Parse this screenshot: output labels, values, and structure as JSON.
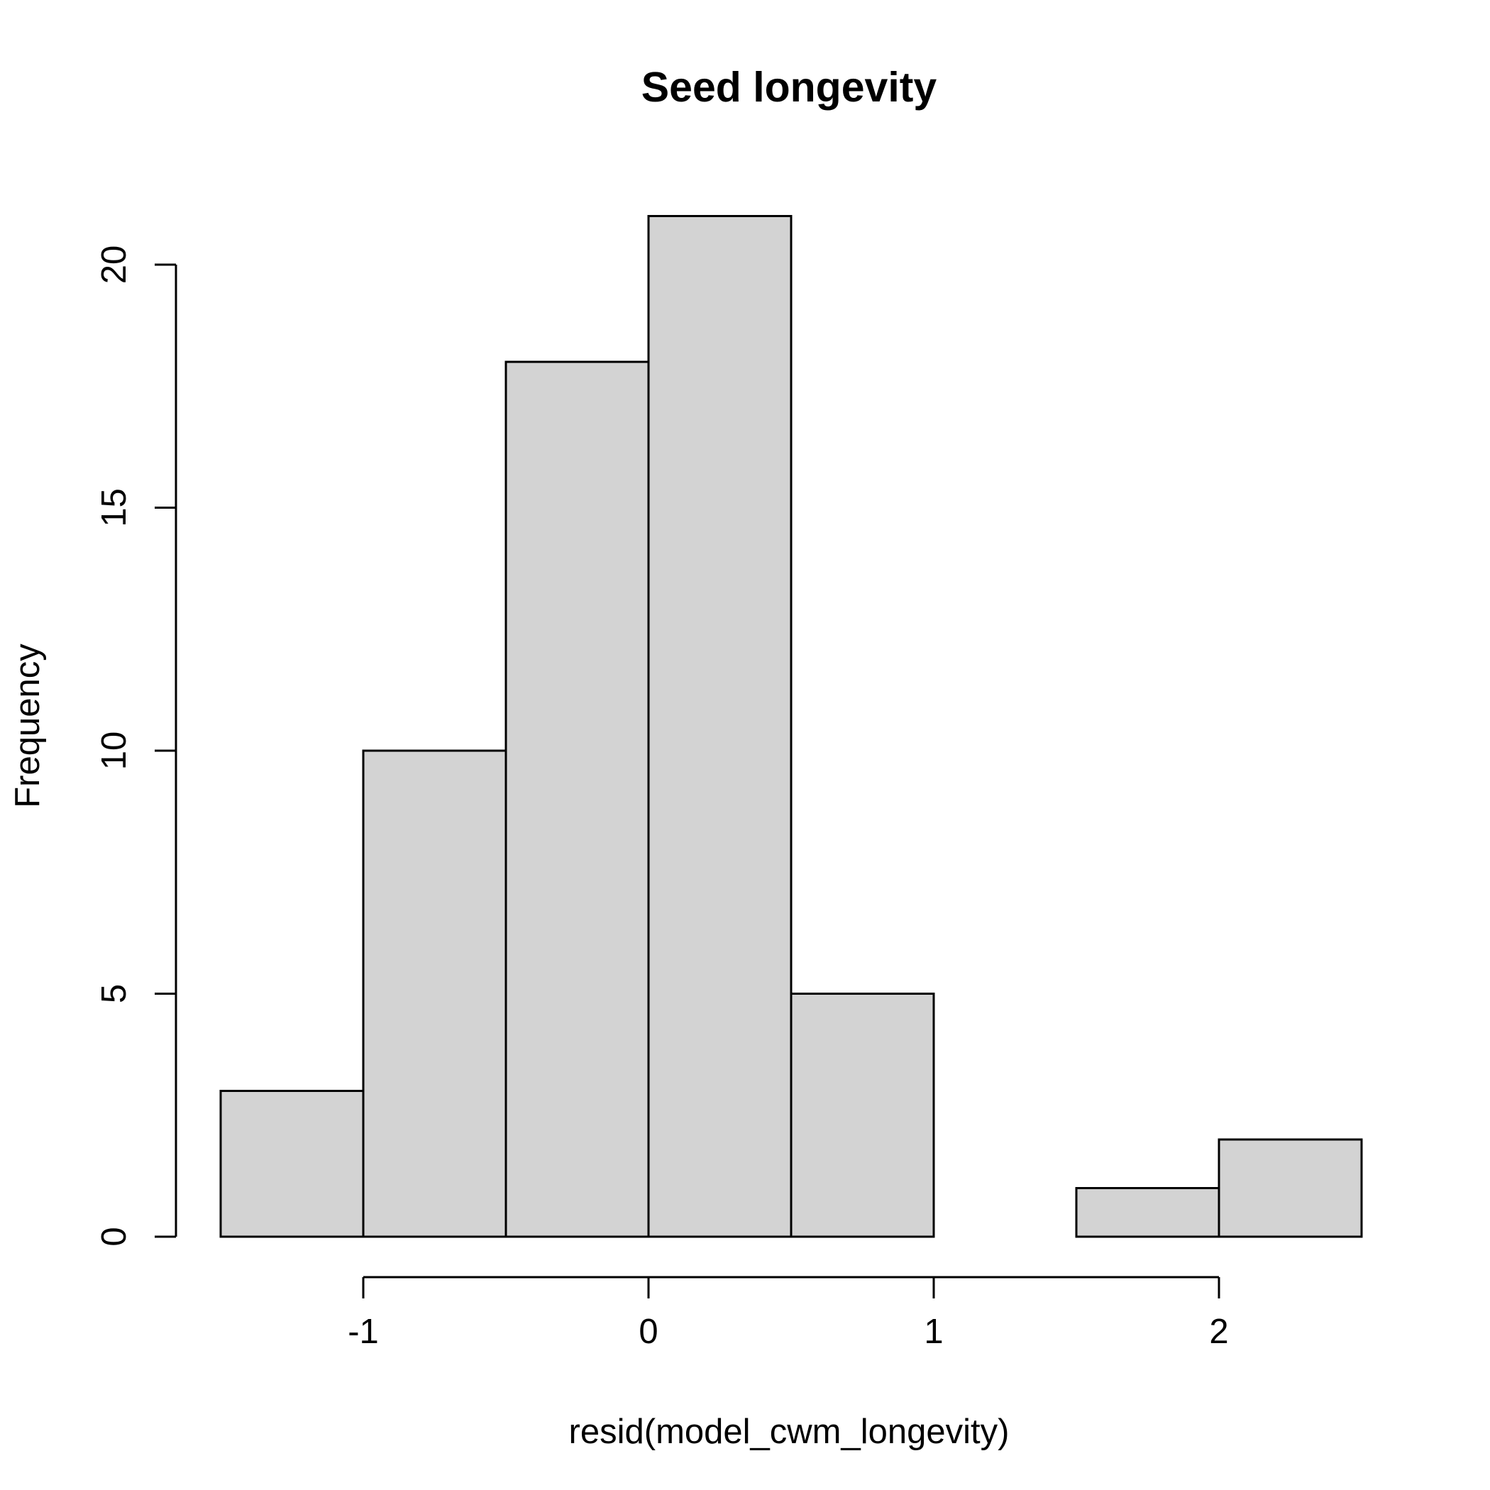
{
  "chart_data": {
    "type": "bar",
    "title": "Seed longevity",
    "xlabel": "resid(model_cwm_longevity)",
    "ylabel": "Frequency",
    "bins": [
      {
        "start": -1.5,
        "end": -1.0,
        "count": 3
      },
      {
        "start": -1.0,
        "end": -0.5,
        "count": 10
      },
      {
        "start": -0.5,
        "end": 0.0,
        "count": 18
      },
      {
        "start": 0.0,
        "end": 0.5,
        "count": 21
      },
      {
        "start": 0.5,
        "end": 1.0,
        "count": 5
      },
      {
        "start": 1.0,
        "end": 1.5,
        "count": 0
      },
      {
        "start": 1.5,
        "end": 2.0,
        "count": 1
      },
      {
        "start": 2.0,
        "end": 2.5,
        "count": 2
      }
    ],
    "xticks": [
      -1,
      0,
      1,
      2
    ],
    "xtick_labels": [
      "-1",
      "0",
      "1",
      "2"
    ],
    "yticks": [
      0,
      5,
      10,
      15,
      20
    ],
    "ytick_labels": [
      "0",
      "5",
      "10",
      "15",
      "20"
    ],
    "xlim": [
      -1.5,
      2.5
    ],
    "ylim": [
      0,
      21
    ],
    "bar_color": "#d3d3d3",
    "grid": false
  }
}
